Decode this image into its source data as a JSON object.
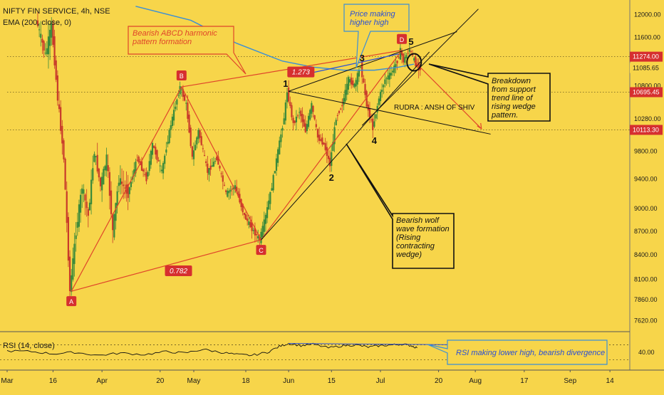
{
  "header": {
    "symbol_line": "NIFTY FIN SERVICE, 4h, NSE",
    "ema_line": "EMA (200, close, 0)"
  },
  "price_axis": {
    "ticks": [
      "12000.00",
      "11600.00",
      "10800.00",
      "10280.00",
      "9800.00",
      "9400.00",
      "9000.00",
      "8700.00",
      "8400.00",
      "8100.00",
      "7860.00",
      "7620.00"
    ],
    "tick_values": [
      12000,
      11600,
      10800,
      10280,
      9800,
      9400,
      9000,
      8700,
      8400,
      8100,
      7860,
      7620
    ],
    "markers": [
      {
        "label": "11274.00",
        "value": 11274,
        "bg": "#D62F2F",
        "fg": "#ffffff"
      },
      {
        "label": "11085.65",
        "value": 11085.65,
        "bg": "#F7D54A",
        "fg": "#1a1a1a"
      },
      {
        "label": "10695.45",
        "value": 10695.45,
        "bg": "#D62F2F",
        "fg": "#ffffff"
      },
      {
        "label": "10113.30",
        "value": 10113.3,
        "bg": "#D62F2F",
        "fg": "#ffffff"
      }
    ]
  },
  "time_axis": {
    "labels": [
      {
        "text": "Mar",
        "day": 0
      },
      {
        "text": "16",
        "day": 15
      },
      {
        "text": "Apr",
        "day": 31
      },
      {
        "text": "20",
        "day": 50
      },
      {
        "text": "May",
        "day": 61
      },
      {
        "text": "18",
        "day": 78
      },
      {
        "text": "Jun",
        "day": 92
      },
      {
        "text": "15",
        "day": 106
      },
      {
        "text": "Jul",
        "day": 122
      },
      {
        "text": "20",
        "day": 141
      },
      {
        "text": "Aug",
        "day": 153
      },
      {
        "text": "17",
        "day": 169
      },
      {
        "text": "Sep",
        "day": 184
      },
      {
        "text": "14",
        "day": 197
      }
    ]
  },
  "rsi": {
    "label": "RSI (14, close)",
    "ticks": [
      "40.00"
    ],
    "tick_values": [
      40
    ]
  },
  "pattern_points": [
    {
      "label": "A",
      "day": 21,
      "price": 7960
    },
    {
      "label": "B",
      "day": 57,
      "price": 10780
    },
    {
      "label": "C",
      "day": 83,
      "price": 8590
    },
    {
      "label": "D",
      "day": 129,
      "price": 11380
    }
  ],
  "wave_labels": [
    {
      "text": "1",
      "day": 91,
      "price": 10710
    },
    {
      "text": "2",
      "day": 106,
      "price": 9600
    },
    {
      "text": "3",
      "day": 116,
      "price": 11130
    },
    {
      "text": "4",
      "day": 120,
      "price": 10140
    },
    {
      "text": "5",
      "day": 132,
      "price": 11400
    }
  ],
  "ratios": [
    {
      "text": "1.273",
      "day": 96,
      "price": 11015
    },
    {
      "text": "0.782",
      "day": 56,
      "price": 8200
    }
  ],
  "annotations": {
    "abcd": "Bearish ABCD harmonic pattern formation",
    "price_hh": "Price making higher high",
    "breakdown": "Breakdown from support trend line of rising wedge pattern.",
    "wolf": "Bearish wolf wave formation (Rising contracting wedge)",
    "rsi_div": "RSI making lower high, bearish divergence",
    "author": "RUDRA : ANSH OF SHIV"
  },
  "chart_data": {
    "type": "line",
    "title": "NIFTY FIN SERVICE, 4h, NSE",
    "x_unit": "days since Mar 1",
    "y_scale": "log",
    "ylim": [
      7560,
      12160
    ],
    "x_range": [
      0,
      200
    ],
    "price_path": [
      [
        10,
        11900
      ],
      [
        13,
        11300
      ],
      [
        15,
        11800
      ],
      [
        17,
        10600
      ],
      [
        19,
        9700
      ],
      [
        20,
        8800
      ],
      [
        21,
        7960
      ],
      [
        23,
        8700
      ],
      [
        25,
        9300
      ],
      [
        27,
        8900
      ],
      [
        29,
        9800
      ],
      [
        31,
        9300
      ],
      [
        33,
        9700
      ],
      [
        35,
        8700
      ],
      [
        37,
        9400
      ],
      [
        40,
        9200
      ],
      [
        43,
        9700
      ],
      [
        46,
        9400
      ],
      [
        48,
        9900
      ],
      [
        51,
        9500
      ],
      [
        54,
        10200
      ],
      [
        57,
        10780
      ],
      [
        59,
        10500
      ],
      [
        61,
        9700
      ],
      [
        63,
        10100
      ],
      [
        66,
        9500
      ],
      [
        69,
        9700
      ],
      [
        72,
        9200
      ],
      [
        75,
        9300
      ],
      [
        78,
        8900
      ],
      [
        81,
        8700
      ],
      [
        83,
        8590
      ],
      [
        85,
        8900
      ],
      [
        87,
        9300
      ],
      [
        89,
        9800
      ],
      [
        91,
        10300
      ],
      [
        92,
        10710
      ],
      [
        94,
        10200
      ],
      [
        96,
        10400
      ],
      [
        98,
        10100
      ],
      [
        100,
        10500
      ],
      [
        102,
        10000
      ],
      [
        104,
        9900
      ],
      [
        106,
        9600
      ],
      [
        108,
        10300
      ],
      [
        110,
        10500
      ],
      [
        112,
        10900
      ],
      [
        114,
        10800
      ],
      [
        116,
        11130
      ],
      [
        118,
        10500
      ],
      [
        120,
        10140
      ],
      [
        122,
        10600
      ],
      [
        124,
        10900
      ],
      [
        126,
        11000
      ],
      [
        128,
        11200
      ],
      [
        129,
        11380
      ],
      [
        130,
        11200
      ],
      [
        132,
        11400
      ],
      [
        134,
        11150
      ],
      [
        135,
        11085
      ]
    ],
    "ema_200": [
      [
        42,
        12150
      ],
      [
        60,
        11900
      ],
      [
        75,
        11500
      ],
      [
        90,
        11200
      ],
      [
        100,
        11100
      ],
      [
        110,
        11050
      ],
      [
        120,
        11050
      ],
      [
        128,
        11100
      ],
      [
        133,
        11150
      ]
    ],
    "horizontal_levels": [
      11274,
      10695.45,
      10113.3
    ],
    "rsi_series": [
      [
        0,
        42
      ],
      [
        8,
        41
      ],
      [
        15,
        38
      ],
      [
        22,
        40
      ],
      [
        30,
        36
      ],
      [
        37,
        39
      ],
      [
        45,
        37
      ],
      [
        52,
        41
      ],
      [
        58,
        39
      ],
      [
        64,
        44
      ],
      [
        70,
        40
      ],
      [
        75,
        37
      ],
      [
        80,
        36
      ],
      [
        85,
        40
      ],
      [
        89,
        48
      ],
      [
        92,
        52
      ],
      [
        96,
        49
      ],
      [
        100,
        51
      ],
      [
        105,
        46
      ],
      [
        110,
        49
      ],
      [
        114,
        50
      ],
      [
        118,
        47
      ],
      [
        122,
        49
      ],
      [
        126,
        50
      ],
      [
        129,
        51
      ],
      [
        132,
        49
      ],
      [
        134,
        46
      ]
    ],
    "rsi_ylim": [
      20,
      62
    ]
  }
}
